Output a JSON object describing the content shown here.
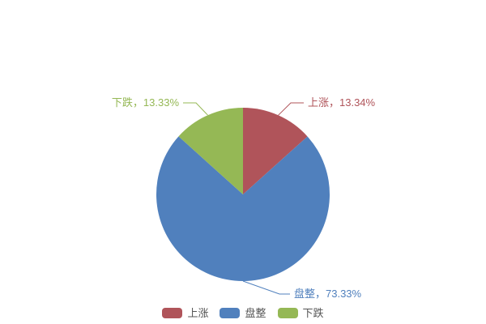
{
  "chart_data": {
    "type": "pie",
    "title": "",
    "legend_position": "bottom",
    "start_angle_deg": 0,
    "direction": "clockwise",
    "label_format": "name, value%",
    "background_color": "#ffffff",
    "slices": [
      {
        "name": "上涨",
        "value": 13.34,
        "label": "上涨，13.34%",
        "color": "#b0545a"
      },
      {
        "name": "盘整",
        "value": 73.33,
        "label": "盘整，73.33%",
        "color": "#5080bd"
      },
      {
        "name": "下跌",
        "value": 13.33,
        "label": "下跌，13.33%",
        "color": "#95b855"
      }
    ]
  },
  "legend": {
    "text_color": "#555555",
    "items": [
      {
        "label": "上涨",
        "color": "#b0545a"
      },
      {
        "label": "盘整",
        "color": "#5080bd"
      },
      {
        "label": "下跌",
        "color": "#95b855"
      }
    ]
  }
}
